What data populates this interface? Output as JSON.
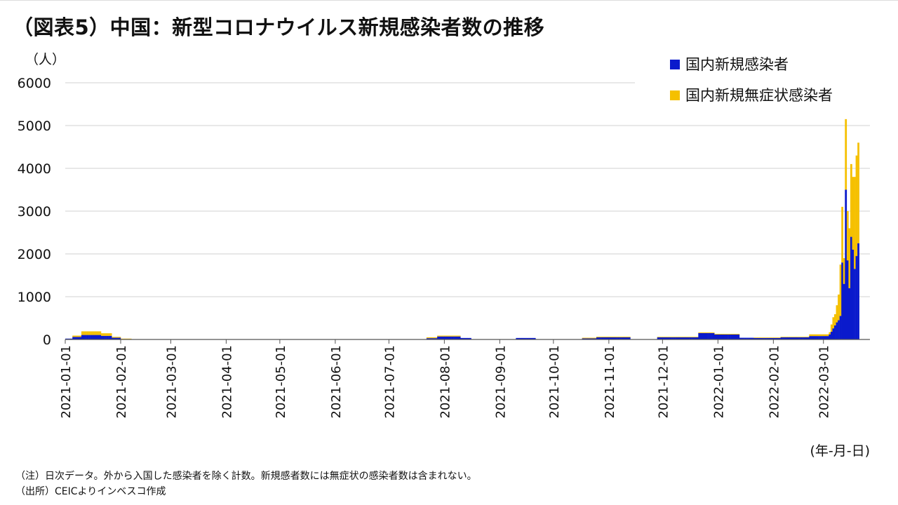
{
  "title": "（図表5）中国：新型コロナウイルス新規感染者数の推移",
  "y_unit": "（人）",
  "x_unit": "(年-月-日)",
  "notes": [
    "（注）日次データ。外から入国した感染者を除く計数。新規感者数には無症状の感染者数は含まれない。",
    "（出所）CEICよりインベスコ作成"
  ],
  "colors": {
    "confirmed": "#0a1acc",
    "asymptomatic": "#f5c000",
    "grid": "#d0d0d0",
    "axis": "#555555"
  },
  "chart_data": {
    "type": "bar",
    "stacked": true,
    "ylim": [
      0,
      6000
    ],
    "yticks": [
      0,
      1000,
      2000,
      3000,
      4000,
      5000,
      6000
    ],
    "xlim": [
      "2021-01-01",
      "2022-03-26"
    ],
    "xticks": [
      "2021-01-01",
      "2021-02-01",
      "2021-03-01",
      "2021-04-01",
      "2021-05-01",
      "2021-06-01",
      "2021-07-01",
      "2021-08-01",
      "2021-09-01",
      "2021-10-01",
      "2021-11-01",
      "2021-12-01",
      "2022-01-01",
      "2022-02-01",
      "2022-03-01"
    ],
    "grid": true,
    "legend_position": "top-right",
    "series": [
      {
        "name": "国内新規感染者",
        "color": "#0a1acc",
        "segments": [
          {
            "from": "2021-01-01",
            "to": "2021-01-04",
            "value": 20
          },
          {
            "from": "2021-01-05",
            "to": "2021-01-09",
            "value": 60
          },
          {
            "from": "2021-01-10",
            "to": "2021-01-20",
            "value": 105
          },
          {
            "from": "2021-01-21",
            "to": "2021-01-26",
            "value": 85
          },
          {
            "from": "2021-01-27",
            "to": "2021-01-31",
            "value": 40
          },
          {
            "from": "2021-02-01",
            "to": "2021-02-06",
            "value": 10
          },
          {
            "from": "2021-07-22",
            "to": "2021-07-27",
            "value": 30
          },
          {
            "from": "2021-07-28",
            "to": "2021-08-09",
            "value": 70
          },
          {
            "from": "2021-08-10",
            "to": "2021-08-15",
            "value": 35
          },
          {
            "from": "2021-09-10",
            "to": "2021-09-20",
            "value": 35
          },
          {
            "from": "2021-10-17",
            "to": "2021-10-24",
            "value": 25
          },
          {
            "from": "2021-10-25",
            "to": "2021-11-12",
            "value": 50
          },
          {
            "from": "2021-11-28",
            "to": "2021-12-20",
            "value": 50
          },
          {
            "from": "2021-12-21",
            "to": "2021-12-29",
            "value": 150
          },
          {
            "from": "2021-12-30",
            "to": "2022-01-12",
            "value": 115
          },
          {
            "from": "2022-01-13",
            "to": "2022-01-20",
            "value": 40
          },
          {
            "from": "2022-01-21",
            "to": "2022-02-04",
            "value": 35
          },
          {
            "from": "2022-02-05",
            "to": "2022-02-20",
            "value": 50
          },
          {
            "from": "2022-02-21",
            "to": "2022-03-03",
            "value": 80
          }
        ],
        "points": [
          {
            "x": "2022-03-04",
            "y": 120
          },
          {
            "x": "2022-03-05",
            "y": 180
          },
          {
            "x": "2022-03-06",
            "y": 260
          },
          {
            "x": "2022-03-07",
            "y": 330
          },
          {
            "x": "2022-03-08",
            "y": 400
          },
          {
            "x": "2022-03-09",
            "y": 450
          },
          {
            "x": "2022-03-10",
            "y": 550
          },
          {
            "x": "2022-03-11",
            "y": 1800
          },
          {
            "x": "2022-03-12",
            "y": 1300
          },
          {
            "x": "2022-03-13",
            "y": 3500
          },
          {
            "x": "2022-03-14",
            "y": 1850
          },
          {
            "x": "2022-03-15",
            "y": 1200
          },
          {
            "x": "2022-03-16",
            "y": 2400
          },
          {
            "x": "2022-03-17",
            "y": 2100
          },
          {
            "x": "2022-03-18",
            "y": 1650
          },
          {
            "x": "2022-03-19",
            "y": 1950
          },
          {
            "x": "2022-03-20",
            "y": 2250
          }
        ]
      },
      {
        "name": "国内新規無症状感染者",
        "color": "#f5c000",
        "segments": [
          {
            "from": "2021-01-05",
            "to": "2021-01-09",
            "value": 30
          },
          {
            "from": "2021-01-10",
            "to": "2021-01-20",
            "value": 85
          },
          {
            "from": "2021-01-21",
            "to": "2021-01-26",
            "value": 60
          },
          {
            "from": "2021-01-27",
            "to": "2021-01-31",
            "value": 20
          },
          {
            "from": "2021-02-01",
            "to": "2021-02-06",
            "value": 10
          },
          {
            "from": "2021-04-01",
            "to": "2021-04-06",
            "value": 8
          },
          {
            "from": "2021-05-10",
            "to": "2021-06-15",
            "value": 8
          },
          {
            "from": "2021-07-22",
            "to": "2021-08-09",
            "value": 20
          },
          {
            "from": "2021-10-17",
            "to": "2021-11-12",
            "value": 15
          },
          {
            "from": "2021-11-28",
            "to": "2021-12-20",
            "value": 12
          },
          {
            "from": "2021-12-21",
            "to": "2022-01-12",
            "value": 15
          },
          {
            "from": "2022-01-21",
            "to": "2022-02-20",
            "value": 12
          },
          {
            "from": "2022-02-21",
            "to": "2022-03-03",
            "value": 40
          }
        ],
        "points": [
          {
            "x": "2022-03-04",
            "y": 50
          },
          {
            "x": "2022-03-05",
            "y": 170
          },
          {
            "x": "2022-03-06",
            "y": 260
          },
          {
            "x": "2022-03-07",
            "y": 260
          },
          {
            "x": "2022-03-08",
            "y": 400
          },
          {
            "x": "2022-03-09",
            "y": 600
          },
          {
            "x": "2022-03-10",
            "y": 1200
          },
          {
            "x": "2022-03-11",
            "y": 1300
          },
          {
            "x": "2022-03-12",
            "y": 600
          },
          {
            "x": "2022-03-13",
            "y": 1650
          },
          {
            "x": "2022-03-14",
            "y": 1150
          },
          {
            "x": "2022-03-15",
            "y": 1400
          },
          {
            "x": "2022-03-16",
            "y": 1700
          },
          {
            "x": "2022-03-17",
            "y": 1700
          },
          {
            "x": "2022-03-18",
            "y": 2150
          },
          {
            "x": "2022-03-19",
            "y": 2350
          },
          {
            "x": "2022-03-20",
            "y": 2350
          }
        ]
      }
    ]
  }
}
